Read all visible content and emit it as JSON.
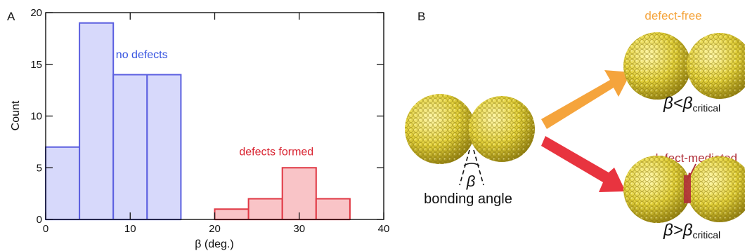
{
  "panel_a": {
    "letter": "A"
  },
  "panel_b": {
    "letter": "B",
    "beta_symbol": "β",
    "bonding_label": "bonding angle",
    "top_label": "defect-free",
    "bottom_label": "defect-mediated",
    "cond_top_lhs": "β<β",
    "cond_top_sub": "critical",
    "cond_bottom_lhs": "β>β",
    "cond_bottom_sub": "critical",
    "colors": {
      "top_arrow": "#f5a43c",
      "bottom_arrow": "#e8343f",
      "particle": "#e3d13a",
      "defect": "#b0303a"
    }
  },
  "chart_data": {
    "type": "bar",
    "xlabel": "β (deg.)",
    "ylabel": "Count",
    "xlim": [
      0,
      40
    ],
    "ylim": [
      0,
      20
    ],
    "xticks": [
      0,
      10,
      20,
      30,
      40
    ],
    "yticks": [
      0,
      5,
      10,
      15,
      20
    ],
    "bin_width": 4,
    "series": [
      {
        "name": "no defects",
        "bin_starts": [
          0,
          4,
          8,
          12
        ],
        "values": [
          7,
          19,
          14,
          14
        ],
        "color": "#5b5fe0",
        "fill": "#d7d9fb",
        "label_color": "#3553e0"
      },
      {
        "name": "defects formed",
        "bin_starts": [
          20,
          24,
          28,
          32
        ],
        "values": [
          1,
          2,
          5,
          2
        ],
        "color": "#e03844",
        "fill": "#f9c4c7",
        "label_color": "#d92532"
      }
    ]
  }
}
